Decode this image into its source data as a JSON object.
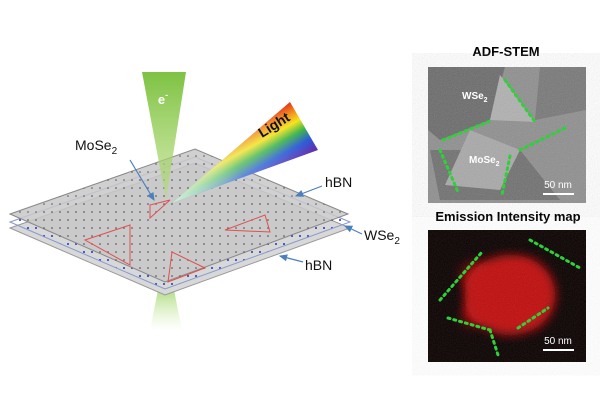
{
  "diagram": {
    "electron": {
      "base": "e",
      "sup": "-"
    },
    "mose2_label": {
      "base": "MoSe",
      "sub": "2"
    },
    "light_label": "Light",
    "hbn_top_label": "hBN",
    "wse2_label": {
      "base": "WSe",
      "sub": "2"
    },
    "hbn_bottom_label": "hBN"
  },
  "panels": [
    {
      "title": "ADF-STEM",
      "wse2": {
        "base": "WSe",
        "sub": "2"
      },
      "mose2": {
        "base": "MoSe",
        "sub": "2"
      },
      "scale_bar": "50 nm"
    },
    {
      "title": "Emission Intensity map",
      "scale_bar": "50 nm"
    }
  ]
}
